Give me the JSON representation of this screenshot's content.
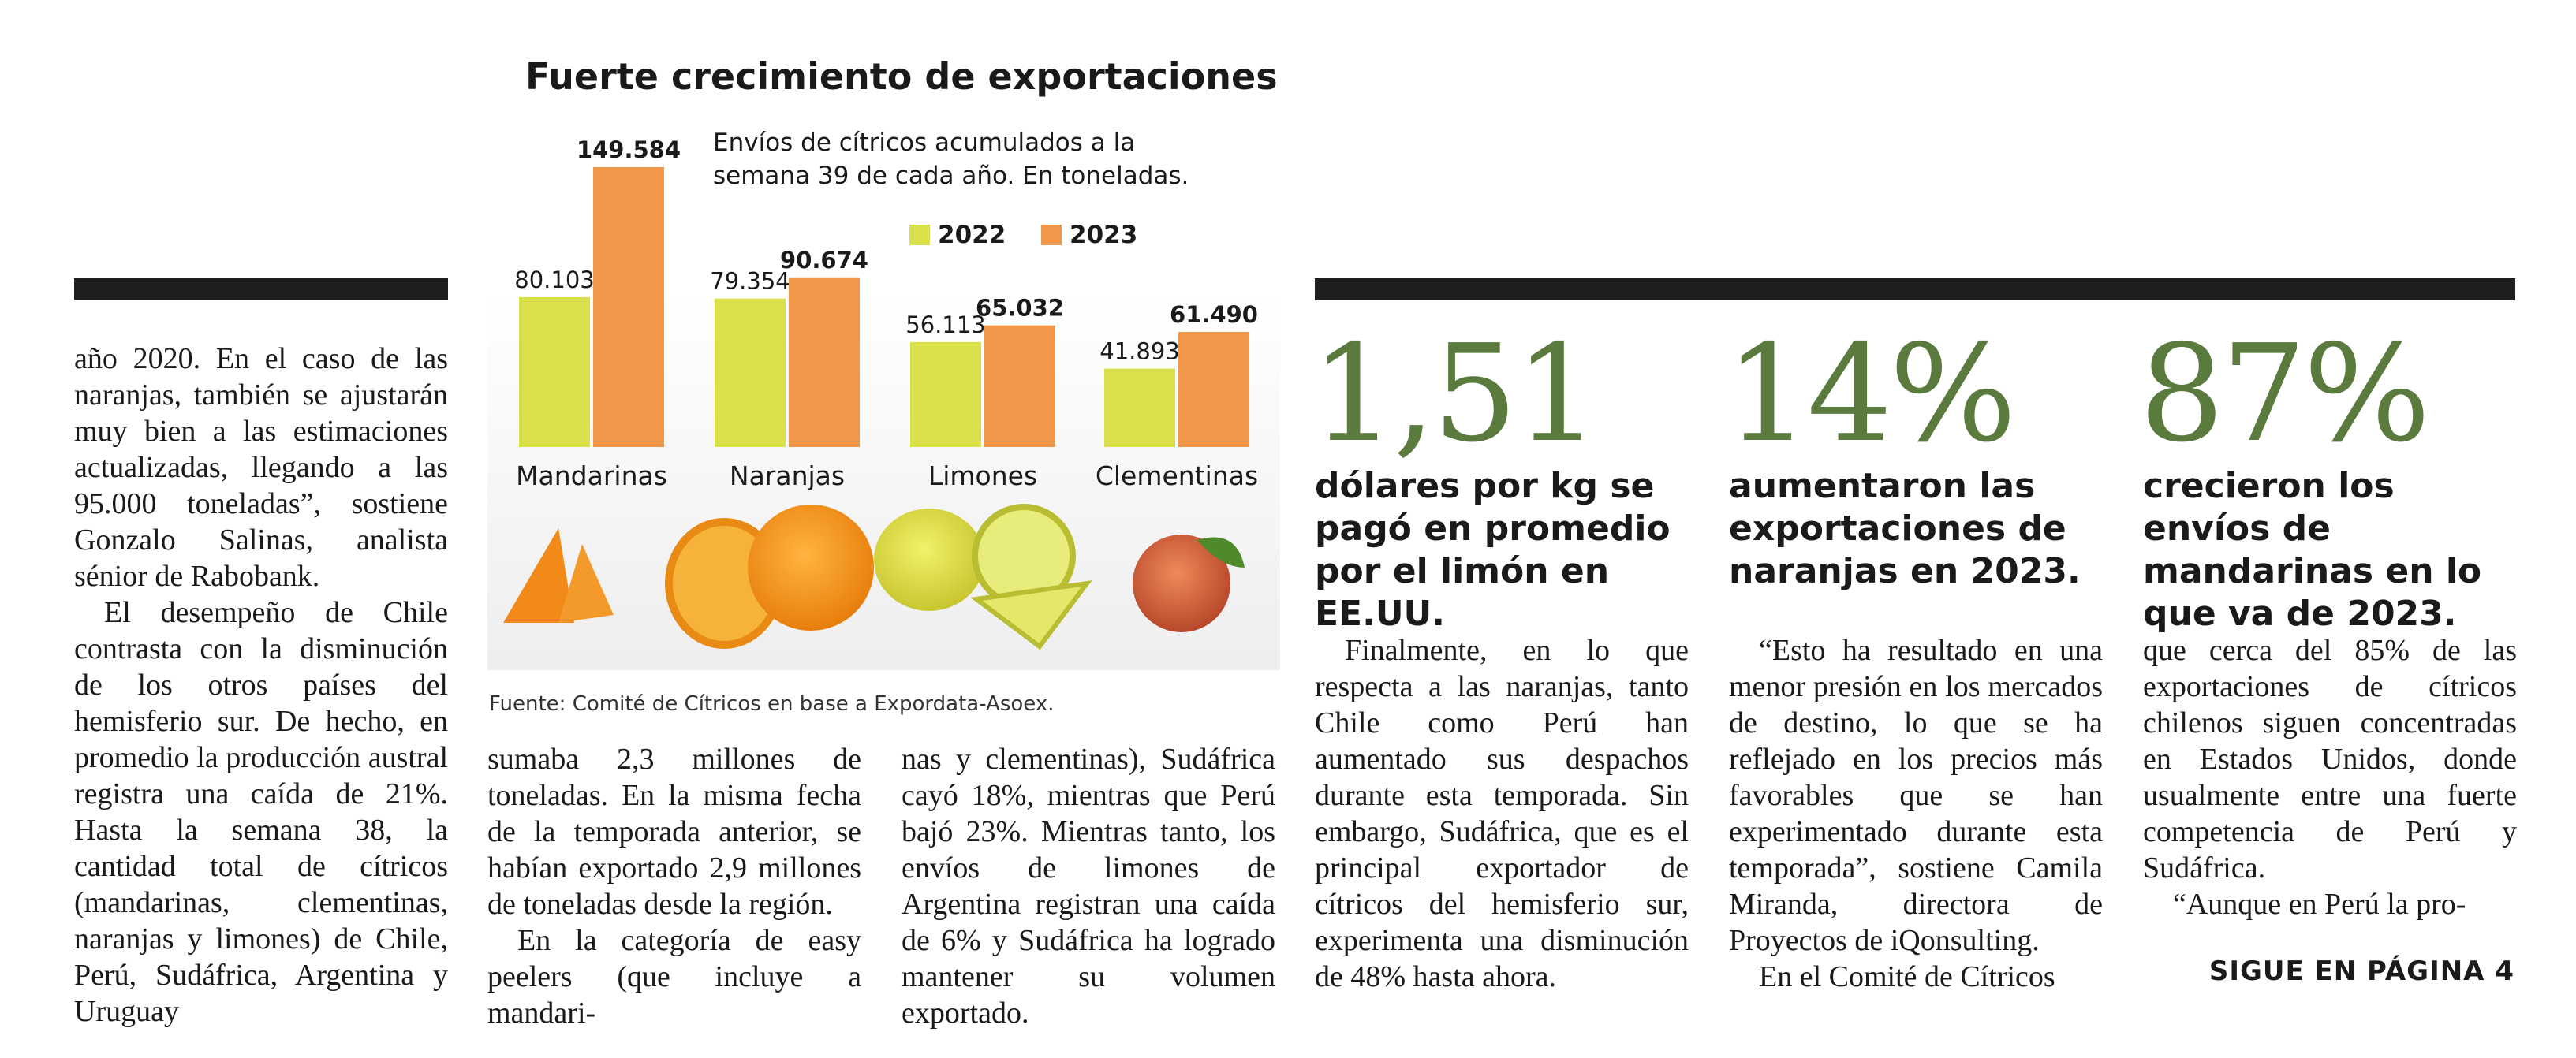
{
  "chart": {
    "title": "Fuerte crecimiento de exportaciones",
    "subtitle_line1": "Envíos de cítricos acumulados a la",
    "subtitle_line2": "semana 39 de cada año. En toneladas.",
    "legend_2022": "2022",
    "legend_2023": "2023",
    "source": "Fuente: Comité de Cítricos en base a Expordata-Asoex.",
    "colors": {
      "y2022": "#d9e04a",
      "y2023": "#f0974a"
    }
  },
  "chart_data": {
    "type": "bar",
    "title": "Fuerte crecimiento de exportaciones",
    "categories": [
      "Mandarinas",
      "Naranjas",
      "Limones",
      "Clementinas"
    ],
    "series": [
      {
        "name": "2022",
        "values": [
          80103,
          79354,
          56113,
          41893
        ],
        "labels": [
          "80.103",
          "79.354",
          "56.113",
          "41.893"
        ]
      },
      {
        "name": "2023",
        "values": [
          149584,
          90674,
          65032,
          61490
        ],
        "labels": [
          "149.584",
          "90.674",
          "65.032",
          "61.490"
        ]
      }
    ],
    "ylim": [
      0,
      149584
    ]
  },
  "left_column": {
    "p1": "año 2020. En el caso de las naranjas, también se ajustarán muy bien a las estimaciones actualizadas, llegando a las 95.000 toneladas”, sostiene Gonzalo Salinas, analista sénior de Rabobank.",
    "p2": "El desempeño de Chile contrasta con la disminución de los otros países del hemisferio sur. De hecho, en promedio la producción austral registra una caída de 21%. Hasta la semana 38, la cantidad total de cítricos (mandarinas, clementinas, naranjas y limones) de Chile, Perú, Sudáfrica, Argentina y Uruguay"
  },
  "mid_column_1": {
    "p1": "sumaba 2,3 millones de toneladas. En la misma fecha de la temporada anterior, se habían exportado 2,9 millones de toneladas desde la región.",
    "p2": "En la categoría de easy peelers (que incluye a mandari-"
  },
  "mid_column_2": {
    "p1": "nas y clementinas), Sudáfrica cayó 18%, mientras que Perú bajó 23%. Mientras tanto, los envíos de limones de Argentina registran una caída de 6% y Sudáfrica ha logrado mantener su volumen exportado."
  },
  "stats": [
    {
      "value": "1,51",
      "label": "dólares por kg se pagó en promedio por el limón en EE.UU."
    },
    {
      "value": "14%",
      "label": "aumentaron las exportaciones de naranjas en 2023."
    },
    {
      "value": "87%",
      "label": "crecieron los envíos de mandarinas en lo que va de 2023."
    }
  ],
  "right_col_1": {
    "p1": "Finalmente, en lo que respecta a las naranjas, tanto Chile como Perú han aumentado sus despachos durante esta temporada. Sin embargo, Sudáfrica, que es el principal exportador de cítricos del hemisferio sur, experimenta una disminución de 48% hasta ahora."
  },
  "right_col_2": {
    "p1": "“Esto ha resultado en una menor presión en los mercados de destino, lo que se ha reflejado en los precios más favorables que se han experimentado durante esta temporada”, sostiene Camila Miranda, directora de Proyectos de iQonsulting.",
    "p2": "En el Comité de Cítricos"
  },
  "right_col_3": {
    "p1": "que cerca del 85% de las exportaciones de cítricos chilenos siguen concentradas en Estados Unidos, donde usualmente entre una fuerte competencia de Perú y Sudáfrica.",
    "p2": "“Aunque en Perú la pro-"
  },
  "footer": {
    "continue": "SIGUE EN PÁGINA 4"
  }
}
